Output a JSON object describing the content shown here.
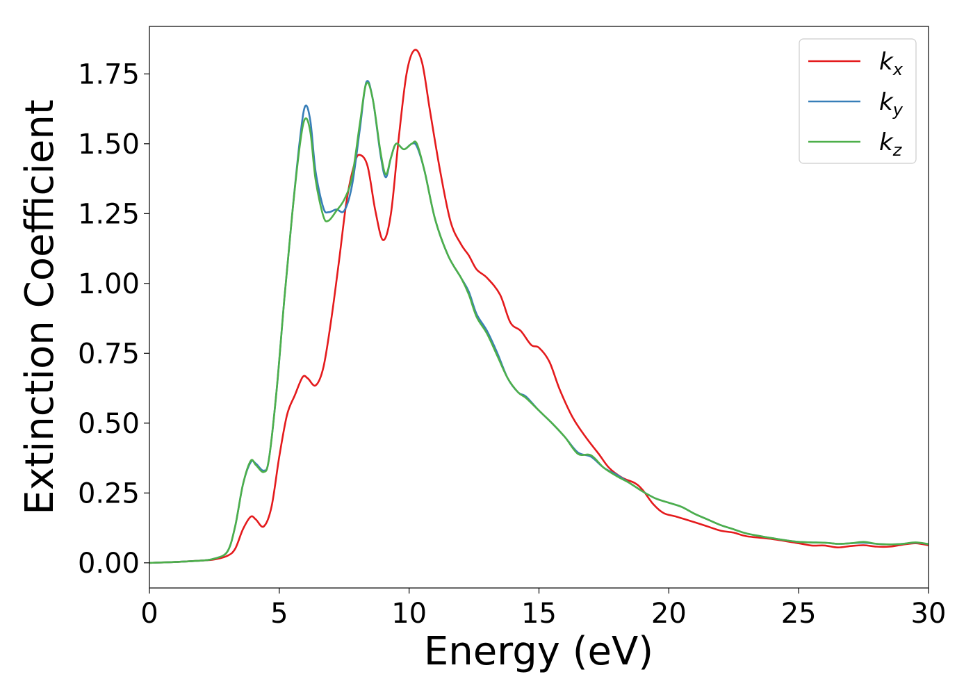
{
  "chart_data": {
    "type": "line",
    "title": "",
    "xlabel": "Energy (eV)",
    "ylabel": "Extinction Coefficient",
    "xlim": [
      0,
      30
    ],
    "ylim": [
      -0.09,
      1.92
    ],
    "x_ticks": [
      "0",
      "5",
      "10",
      "15",
      "20",
      "25",
      "30"
    ],
    "y_ticks": [
      "0.00",
      "0.25",
      "0.50",
      "0.75",
      "1.00",
      "1.25",
      "1.50",
      "1.75"
    ],
    "grid": false,
    "legend_position": "top-right",
    "series": [
      {
        "name": "kx",
        "legend_base": "k",
        "legend_sub": "x",
        "color": "#e41a1c",
        "points": [
          [
            0,
            0
          ],
          [
            1,
            0.003
          ],
          [
            2,
            0.008
          ],
          [
            2.5,
            0.012
          ],
          [
            3,
            0.025
          ],
          [
            3.3,
            0.05
          ],
          [
            3.6,
            0.12
          ],
          [
            3.9,
            0.165
          ],
          [
            4.1,
            0.155
          ],
          [
            4.4,
            0.13
          ],
          [
            4.7,
            0.2
          ],
          [
            5,
            0.38
          ],
          [
            5.3,
            0.53
          ],
          [
            5.6,
            0.6
          ],
          [
            5.9,
            0.665
          ],
          [
            6.1,
            0.66
          ],
          [
            6.4,
            0.635
          ],
          [
            6.7,
            0.7
          ],
          [
            7,
            0.87
          ],
          [
            7.3,
            1.08
          ],
          [
            7.6,
            1.3
          ],
          [
            7.9,
            1.43
          ],
          [
            8.1,
            1.46
          ],
          [
            8.4,
            1.42
          ],
          [
            8.7,
            1.26
          ],
          [
            9,
            1.155
          ],
          [
            9.3,
            1.25
          ],
          [
            9.6,
            1.52
          ],
          [
            9.9,
            1.75
          ],
          [
            10.2,
            1.835
          ],
          [
            10.5,
            1.79
          ],
          [
            10.8,
            1.62
          ],
          [
            11.2,
            1.4
          ],
          [
            11.6,
            1.22
          ],
          [
            12,
            1.14
          ],
          [
            12.3,
            1.1
          ],
          [
            12.6,
            1.05
          ],
          [
            13,
            1.02
          ],
          [
            13.5,
            0.96
          ],
          [
            13.9,
            0.86
          ],
          [
            14.3,
            0.83
          ],
          [
            14.7,
            0.78
          ],
          [
            15,
            0.77
          ],
          [
            15.4,
            0.72
          ],
          [
            15.8,
            0.62
          ],
          [
            16.3,
            0.52
          ],
          [
            16.8,
            0.45
          ],
          [
            17.3,
            0.39
          ],
          [
            17.7,
            0.34
          ],
          [
            18.2,
            0.305
          ],
          [
            18.7,
            0.285
          ],
          [
            19,
            0.26
          ],
          [
            19.4,
            0.21
          ],
          [
            19.8,
            0.178
          ],
          [
            20.3,
            0.165
          ],
          [
            21,
            0.145
          ],
          [
            21.5,
            0.13
          ],
          [
            22,
            0.115
          ],
          [
            22.5,
            0.108
          ],
          [
            23,
            0.095
          ],
          [
            24,
            0.085
          ],
          [
            25,
            0.07
          ],
          [
            25.5,
            0.062
          ],
          [
            26,
            0.062
          ],
          [
            26.5,
            0.055
          ],
          [
            27,
            0.06
          ],
          [
            27.5,
            0.063
          ],
          [
            28,
            0.058
          ],
          [
            28.5,
            0.058
          ],
          [
            29,
            0.065
          ],
          [
            29.5,
            0.07
          ],
          [
            30,
            0.063
          ]
        ]
      },
      {
        "name": "ky",
        "legend_base": "k",
        "legend_sub": "y",
        "color": "#377eb8",
        "points": [
          [
            0,
            0
          ],
          [
            1,
            0.003
          ],
          [
            2,
            0.008
          ],
          [
            2.5,
            0.015
          ],
          [
            3,
            0.04
          ],
          [
            3.3,
            0.13
          ],
          [
            3.6,
            0.28
          ],
          [
            3.9,
            0.36
          ],
          [
            4.1,
            0.355
          ],
          [
            4.4,
            0.33
          ],
          [
            4.6,
            0.37
          ],
          [
            4.9,
            0.62
          ],
          [
            5.2,
            0.95
          ],
          [
            5.5,
            1.25
          ],
          [
            5.8,
            1.52
          ],
          [
            6,
            1.635
          ],
          [
            6.2,
            1.58
          ],
          [
            6.4,
            1.4
          ],
          [
            6.7,
            1.27
          ],
          [
            6.9,
            1.255
          ],
          [
            7.2,
            1.265
          ],
          [
            7.5,
            1.26
          ],
          [
            7.8,
            1.35
          ],
          [
            8.1,
            1.55
          ],
          [
            8.35,
            1.72
          ],
          [
            8.6,
            1.66
          ],
          [
            8.9,
            1.46
          ],
          [
            9.1,
            1.38
          ],
          [
            9.3,
            1.45
          ],
          [
            9.5,
            1.5
          ],
          [
            9.8,
            1.48
          ],
          [
            10.1,
            1.5
          ],
          [
            10.3,
            1.49
          ],
          [
            10.6,
            1.4
          ],
          [
            11,
            1.23
          ],
          [
            11.5,
            1.1
          ],
          [
            12,
            1.02
          ],
          [
            12.3,
            0.97
          ],
          [
            12.6,
            0.89
          ],
          [
            13,
            0.83
          ],
          [
            13.4,
            0.75
          ],
          [
            13.8,
            0.66
          ],
          [
            14.2,
            0.61
          ],
          [
            14.5,
            0.595
          ],
          [
            15,
            0.545
          ],
          [
            15.5,
            0.5
          ],
          [
            16,
            0.45
          ],
          [
            16.5,
            0.395
          ],
          [
            17,
            0.38
          ],
          [
            17.5,
            0.34
          ],
          [
            18,
            0.315
          ],
          [
            18.5,
            0.285
          ],
          [
            19,
            0.255
          ],
          [
            19.5,
            0.23
          ],
          [
            20,
            0.215
          ],
          [
            20.5,
            0.2
          ],
          [
            21,
            0.175
          ],
          [
            21.5,
            0.155
          ],
          [
            22,
            0.135
          ],
          [
            22.5,
            0.12
          ],
          [
            23,
            0.105
          ],
          [
            24,
            0.088
          ],
          [
            25,
            0.075
          ],
          [
            26,
            0.072
          ],
          [
            26.5,
            0.068
          ],
          [
            27,
            0.07
          ],
          [
            27.5,
            0.072
          ],
          [
            28,
            0.068
          ],
          [
            28.5,
            0.066
          ],
          [
            29,
            0.068
          ],
          [
            29.5,
            0.072
          ],
          [
            30,
            0.067
          ]
        ]
      },
      {
        "name": "kz",
        "legend_base": "k",
        "legend_sub": "z",
        "color": "#4daf4a",
        "points": [
          [
            0,
            0
          ],
          [
            1,
            0.003
          ],
          [
            2,
            0.008
          ],
          [
            2.5,
            0.015
          ],
          [
            3,
            0.04
          ],
          [
            3.3,
            0.13
          ],
          [
            3.6,
            0.28
          ],
          [
            3.9,
            0.365
          ],
          [
            4.1,
            0.35
          ],
          [
            4.4,
            0.325
          ],
          [
            4.6,
            0.37
          ],
          [
            4.9,
            0.62
          ],
          [
            5.2,
            0.95
          ],
          [
            5.5,
            1.25
          ],
          [
            5.8,
            1.5
          ],
          [
            6,
            1.59
          ],
          [
            6.2,
            1.54
          ],
          [
            6.4,
            1.37
          ],
          [
            6.7,
            1.24
          ],
          [
            6.9,
            1.225
          ],
          [
            7.2,
            1.26
          ],
          [
            7.5,
            1.3
          ],
          [
            7.8,
            1.38
          ],
          [
            8.1,
            1.57
          ],
          [
            8.35,
            1.715
          ],
          [
            8.6,
            1.66
          ],
          [
            8.9,
            1.47
          ],
          [
            9.1,
            1.39
          ],
          [
            9.3,
            1.45
          ],
          [
            9.5,
            1.5
          ],
          [
            9.8,
            1.48
          ],
          [
            10.1,
            1.5
          ],
          [
            10.3,
            1.5
          ],
          [
            10.6,
            1.4
          ],
          [
            11,
            1.23
          ],
          [
            11.5,
            1.1
          ],
          [
            12,
            1.02
          ],
          [
            12.3,
            0.96
          ],
          [
            12.6,
            0.88
          ],
          [
            13,
            0.82
          ],
          [
            13.4,
            0.74
          ],
          [
            13.8,
            0.66
          ],
          [
            14.2,
            0.61
          ],
          [
            14.5,
            0.59
          ],
          [
            15,
            0.545
          ],
          [
            15.5,
            0.5
          ],
          [
            16,
            0.45
          ],
          [
            16.5,
            0.39
          ],
          [
            17,
            0.385
          ],
          [
            17.5,
            0.34
          ],
          [
            18,
            0.31
          ],
          [
            18.5,
            0.285
          ],
          [
            19,
            0.255
          ],
          [
            19.5,
            0.23
          ],
          [
            20,
            0.215
          ],
          [
            20.5,
            0.2
          ],
          [
            21,
            0.175
          ],
          [
            21.5,
            0.155
          ],
          [
            22,
            0.135
          ],
          [
            22.5,
            0.12
          ],
          [
            23,
            0.105
          ],
          [
            24,
            0.088
          ],
          [
            25,
            0.075
          ],
          [
            26,
            0.072
          ],
          [
            26.5,
            0.068
          ],
          [
            27,
            0.07
          ],
          [
            27.5,
            0.075
          ],
          [
            28,
            0.068
          ],
          [
            28.5,
            0.066
          ],
          [
            29,
            0.068
          ],
          [
            29.5,
            0.073
          ],
          [
            30,
            0.067
          ]
        ]
      }
    ]
  }
}
